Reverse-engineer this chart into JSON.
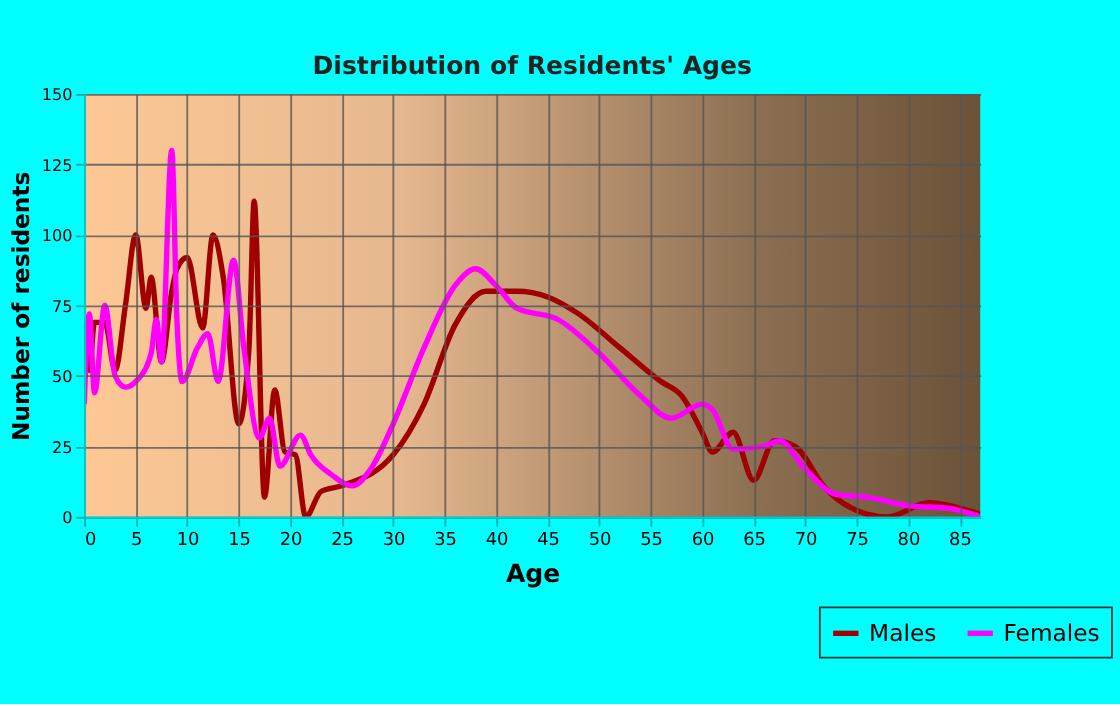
{
  "chart_data": {
    "type": "line",
    "title": "Distribution of Residents' Ages",
    "xlabel": "Age",
    "ylabel": "Number of residents",
    "xlim": [
      0,
      87
    ],
    "xticks": [
      0,
      5,
      10,
      15,
      20,
      25,
      30,
      35,
      40,
      45,
      50,
      55,
      60,
      65,
      70,
      75,
      80,
      85
    ],
    "ylim": [
      0,
      150
    ],
    "yticks": [
      0,
      25,
      50,
      75,
      100,
      125,
      150
    ],
    "grid": true,
    "legend": "bottom right",
    "marker": "none",
    "line_style": "solid",
    "series": [
      {
        "name": "Males",
        "color": "#a00000",
        "x": [
          0,
          0.5,
          1,
          2,
          3,
          4,
          5,
          6,
          6.5,
          7.5,
          8.5,
          9,
          10,
          11.5,
          12.5,
          13.5,
          15,
          16,
          16.5,
          17.5,
          18.5,
          19.5,
          20.5,
          21.5,
          23,
          25,
          30,
          33,
          36,
          39,
          42,
          45,
          48,
          52,
          56,
          58,
          60,
          61,
          63,
          65,
          67,
          69,
          72,
          76,
          78,
          82,
          84,
          87
        ],
        "values": [
          69,
          52,
          69,
          69,
          52,
          75,
          100,
          74,
          85,
          55,
          80,
          88,
          92,
          67,
          100,
          85,
          33,
          60,
          112,
          7,
          45,
          23,
          22,
          0,
          9,
          11,
          22,
          40,
          68,
          80,
          80,
          78,
          72,
          60,
          48,
          43,
          30,
          23,
          30,
          13,
          27,
          25,
          10,
          1,
          0,
          5,
          4,
          1
        ]
      },
      {
        "name": "Females",
        "color": "#ff00ff",
        "x": [
          0,
          0.5,
          1,
          2,
          3,
          4,
          5,
          6.5,
          7,
          7.5,
          8.5,
          9,
          9.5,
          11,
          12,
          13,
          14.5,
          15.5,
          17,
          18,
          19,
          21,
          22,
          24,
          26,
          28,
          30,
          33,
          36,
          38,
          40,
          42,
          46,
          50,
          54,
          57,
          60,
          61,
          63,
          66,
          67.5,
          70,
          73,
          76,
          80,
          84,
          87
        ],
        "values": [
          40,
          72,
          44,
          75,
          50,
          46,
          48,
          58,
          70,
          55,
          130,
          70,
          48,
          60,
          65,
          48,
          91,
          60,
          28,
          35,
          18,
          29,
          22,
          15,
          11,
          18,
          33,
          60,
          82,
          88,
          82,
          74,
          70,
          58,
          43,
          35,
          40,
          38,
          24,
          25,
          27,
          17,
          8,
          7,
          4,
          3,
          0
        ]
      }
    ]
  }
}
